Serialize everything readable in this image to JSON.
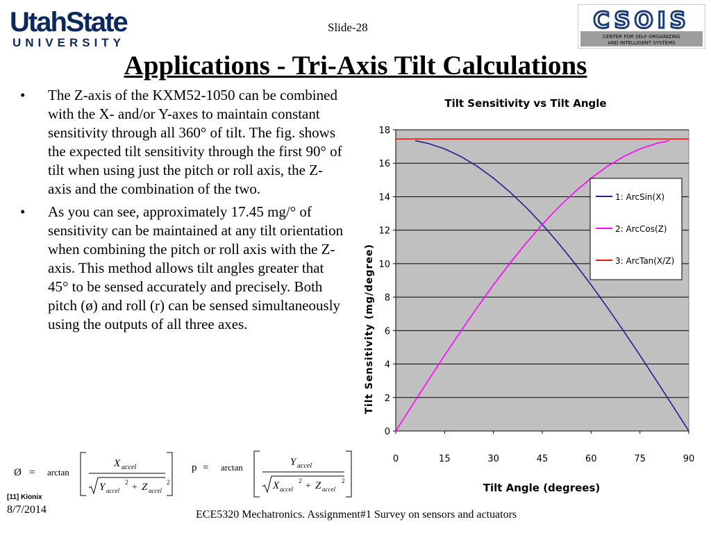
{
  "header": {
    "university_name": "UtahState",
    "university_sub": "UNIVERSITY",
    "slide_number": "Slide-28",
    "lab_logo": "CSOIS",
    "lab_line1": "CENTER FOR SELF-ORGANIZING",
    "lab_line2": "AND INTELLIGENT SYSTEMS"
  },
  "title": "Applications - Tri-Axis Tilt Calculations",
  "bullets": [
    "The Z-axis of the KXM52-1050 can be combined with the X- and/or Y-axes to  maintain constant sensitivity through all 360° of tilt. The fig. shows the expected tilt sensitivity through the first 90° of tilt when using just the pitch or roll axis, the Z-axis and the combination of the two.",
    "As you can see, approximately 17.45 mg/° of sensitivity can be maintained at any tilt orientation when combining the pitch or roll axis with the Z-axis. This method allows tilt angles greater that 45° to be sensed accurately and precisely. Both pitch (ø) and roll (r) can be sensed simultaneously using the outputs of all three axes."
  ],
  "formulas": {
    "pitch_symbol": "Ø",
    "roll_symbol": "p",
    "equals": "=",
    "func": "arctan",
    "x_num": "X",
    "y_num": "Y",
    "x": "X",
    "y": "Y",
    "z": "Z",
    "sub": "accel",
    "sq": "2",
    "plus": "+"
  },
  "reference": "[11] Kionix",
  "date": "8/7/2014",
  "footer": "ECE5320 Mechatronics. Assignment#1 Survey on sensors and actuators",
  "chart_data": {
    "type": "line",
    "title": "Tilt Sensitivity vs Tilt Angle",
    "xlabel": "Tilt Angle (degrees)",
    "ylabel": "Tilt Sensitivity (mg/degree)",
    "xlim": [
      0,
      90
    ],
    "ylim": [
      0,
      18
    ],
    "xticks": [
      0,
      15,
      30,
      45,
      60,
      75,
      90
    ],
    "yticks": [
      0,
      2,
      4,
      6,
      8,
      10,
      12,
      14,
      16,
      18
    ],
    "grid": "horizontal",
    "legend_position": "right",
    "plot_background": "#c0c0c0",
    "series": [
      {
        "name": "1: ArcSin(X)",
        "color": "#1f1f8f",
        "x": [
          6,
          10,
          15,
          20,
          25,
          30,
          35,
          40,
          45,
          50,
          55,
          60,
          65,
          70,
          75,
          80,
          85,
          90
        ],
        "y": [
          17.35,
          17.18,
          16.86,
          16.4,
          15.82,
          15.11,
          14.29,
          13.37,
          12.34,
          11.22,
          10.01,
          8.73,
          7.38,
          5.97,
          4.52,
          3.03,
          1.52,
          0.0
        ]
      },
      {
        "name": "2: ArcCos(Z)",
        "color": "#ff00ff",
        "x": [
          0,
          5,
          10,
          15,
          20,
          25,
          30,
          35,
          40,
          45,
          50,
          55,
          60,
          65,
          70,
          75,
          80,
          84
        ],
        "y": [
          0.0,
          1.52,
          3.03,
          4.52,
          5.97,
          7.38,
          8.73,
          10.01,
          11.22,
          12.34,
          13.37,
          14.29,
          15.11,
          15.82,
          16.4,
          16.86,
          17.18,
          17.35
        ]
      },
      {
        "name": "3: ArcTan(X/Z)",
        "color": "#e8140c",
        "x": [
          0,
          90
        ],
        "y": [
          17.45,
          17.45
        ]
      }
    ]
  }
}
